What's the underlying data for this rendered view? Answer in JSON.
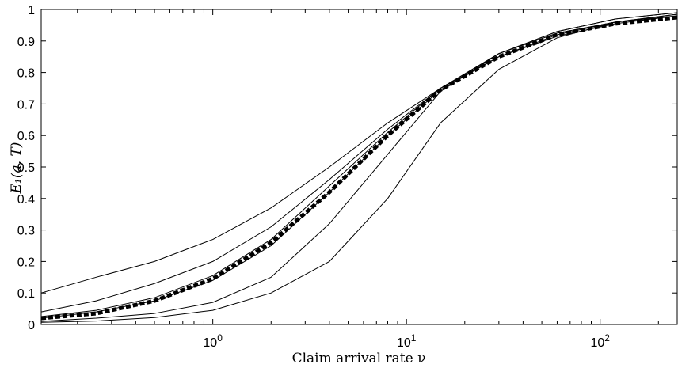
{
  "chart_data": {
    "type": "line",
    "xlabel": "Claim arrival rate ν",
    "ylabel": "E₁(a, T)",
    "xscale": "log",
    "xlim": [
      0.13,
      250
    ],
    "ylim": [
      0,
      1
    ],
    "grid": false,
    "x_tick_labels": [
      {
        "value": 1,
        "base": "10",
        "exp": "0"
      },
      {
        "value": 10,
        "base": "10",
        "exp": "1"
      },
      {
        "value": 100,
        "base": "10",
        "exp": "2"
      }
    ],
    "y_tick_labels": [
      "0",
      "0.1",
      "0.2",
      "0.3",
      "0.4",
      "0.5",
      "0.6",
      "0.7",
      "0.8",
      "0.9",
      "1"
    ],
    "x": [
      0.13,
      0.25,
      0.5,
      1,
      2,
      4,
      8,
      15,
      30,
      60,
      120,
      250
    ],
    "series": [
      {
        "style": "solid",
        "values": [
          0.1,
          0.15,
          0.2,
          0.27,
          0.37,
          0.5,
          0.64,
          0.75,
          0.86,
          0.93,
          0.97,
          0.99
        ]
      },
      {
        "style": "solid",
        "values": [
          0.04,
          0.075,
          0.13,
          0.2,
          0.31,
          0.46,
          0.62,
          0.75,
          0.86,
          0.93,
          0.97,
          0.99
        ]
      },
      {
        "style": "solid",
        "values": [
          0.025,
          0.045,
          0.085,
          0.155,
          0.27,
          0.44,
          0.61,
          0.75,
          0.85,
          0.92,
          0.96,
          0.985
        ]
      },
      {
        "style": "solid",
        "values": [
          0.02,
          0.04,
          0.075,
          0.14,
          0.25,
          0.42,
          0.6,
          0.745,
          0.85,
          0.915,
          0.955,
          0.98
        ]
      },
      {
        "style": "solid",
        "values": [
          0.01,
          0.02,
          0.035,
          0.07,
          0.15,
          0.32,
          0.54,
          0.74,
          0.86,
          0.925,
          0.96,
          0.985
        ]
      },
      {
        "style": "solid",
        "values": [
          0.007,
          0.011,
          0.022,
          0.045,
          0.1,
          0.2,
          0.4,
          0.64,
          0.81,
          0.91,
          0.96,
          0.98
        ]
      },
      {
        "style": "dashed-thick",
        "values": [
          0.02,
          0.035,
          0.075,
          0.145,
          0.26,
          0.42,
          0.6,
          0.745,
          0.85,
          0.92,
          0.955,
          0.975
        ]
      }
    ]
  }
}
